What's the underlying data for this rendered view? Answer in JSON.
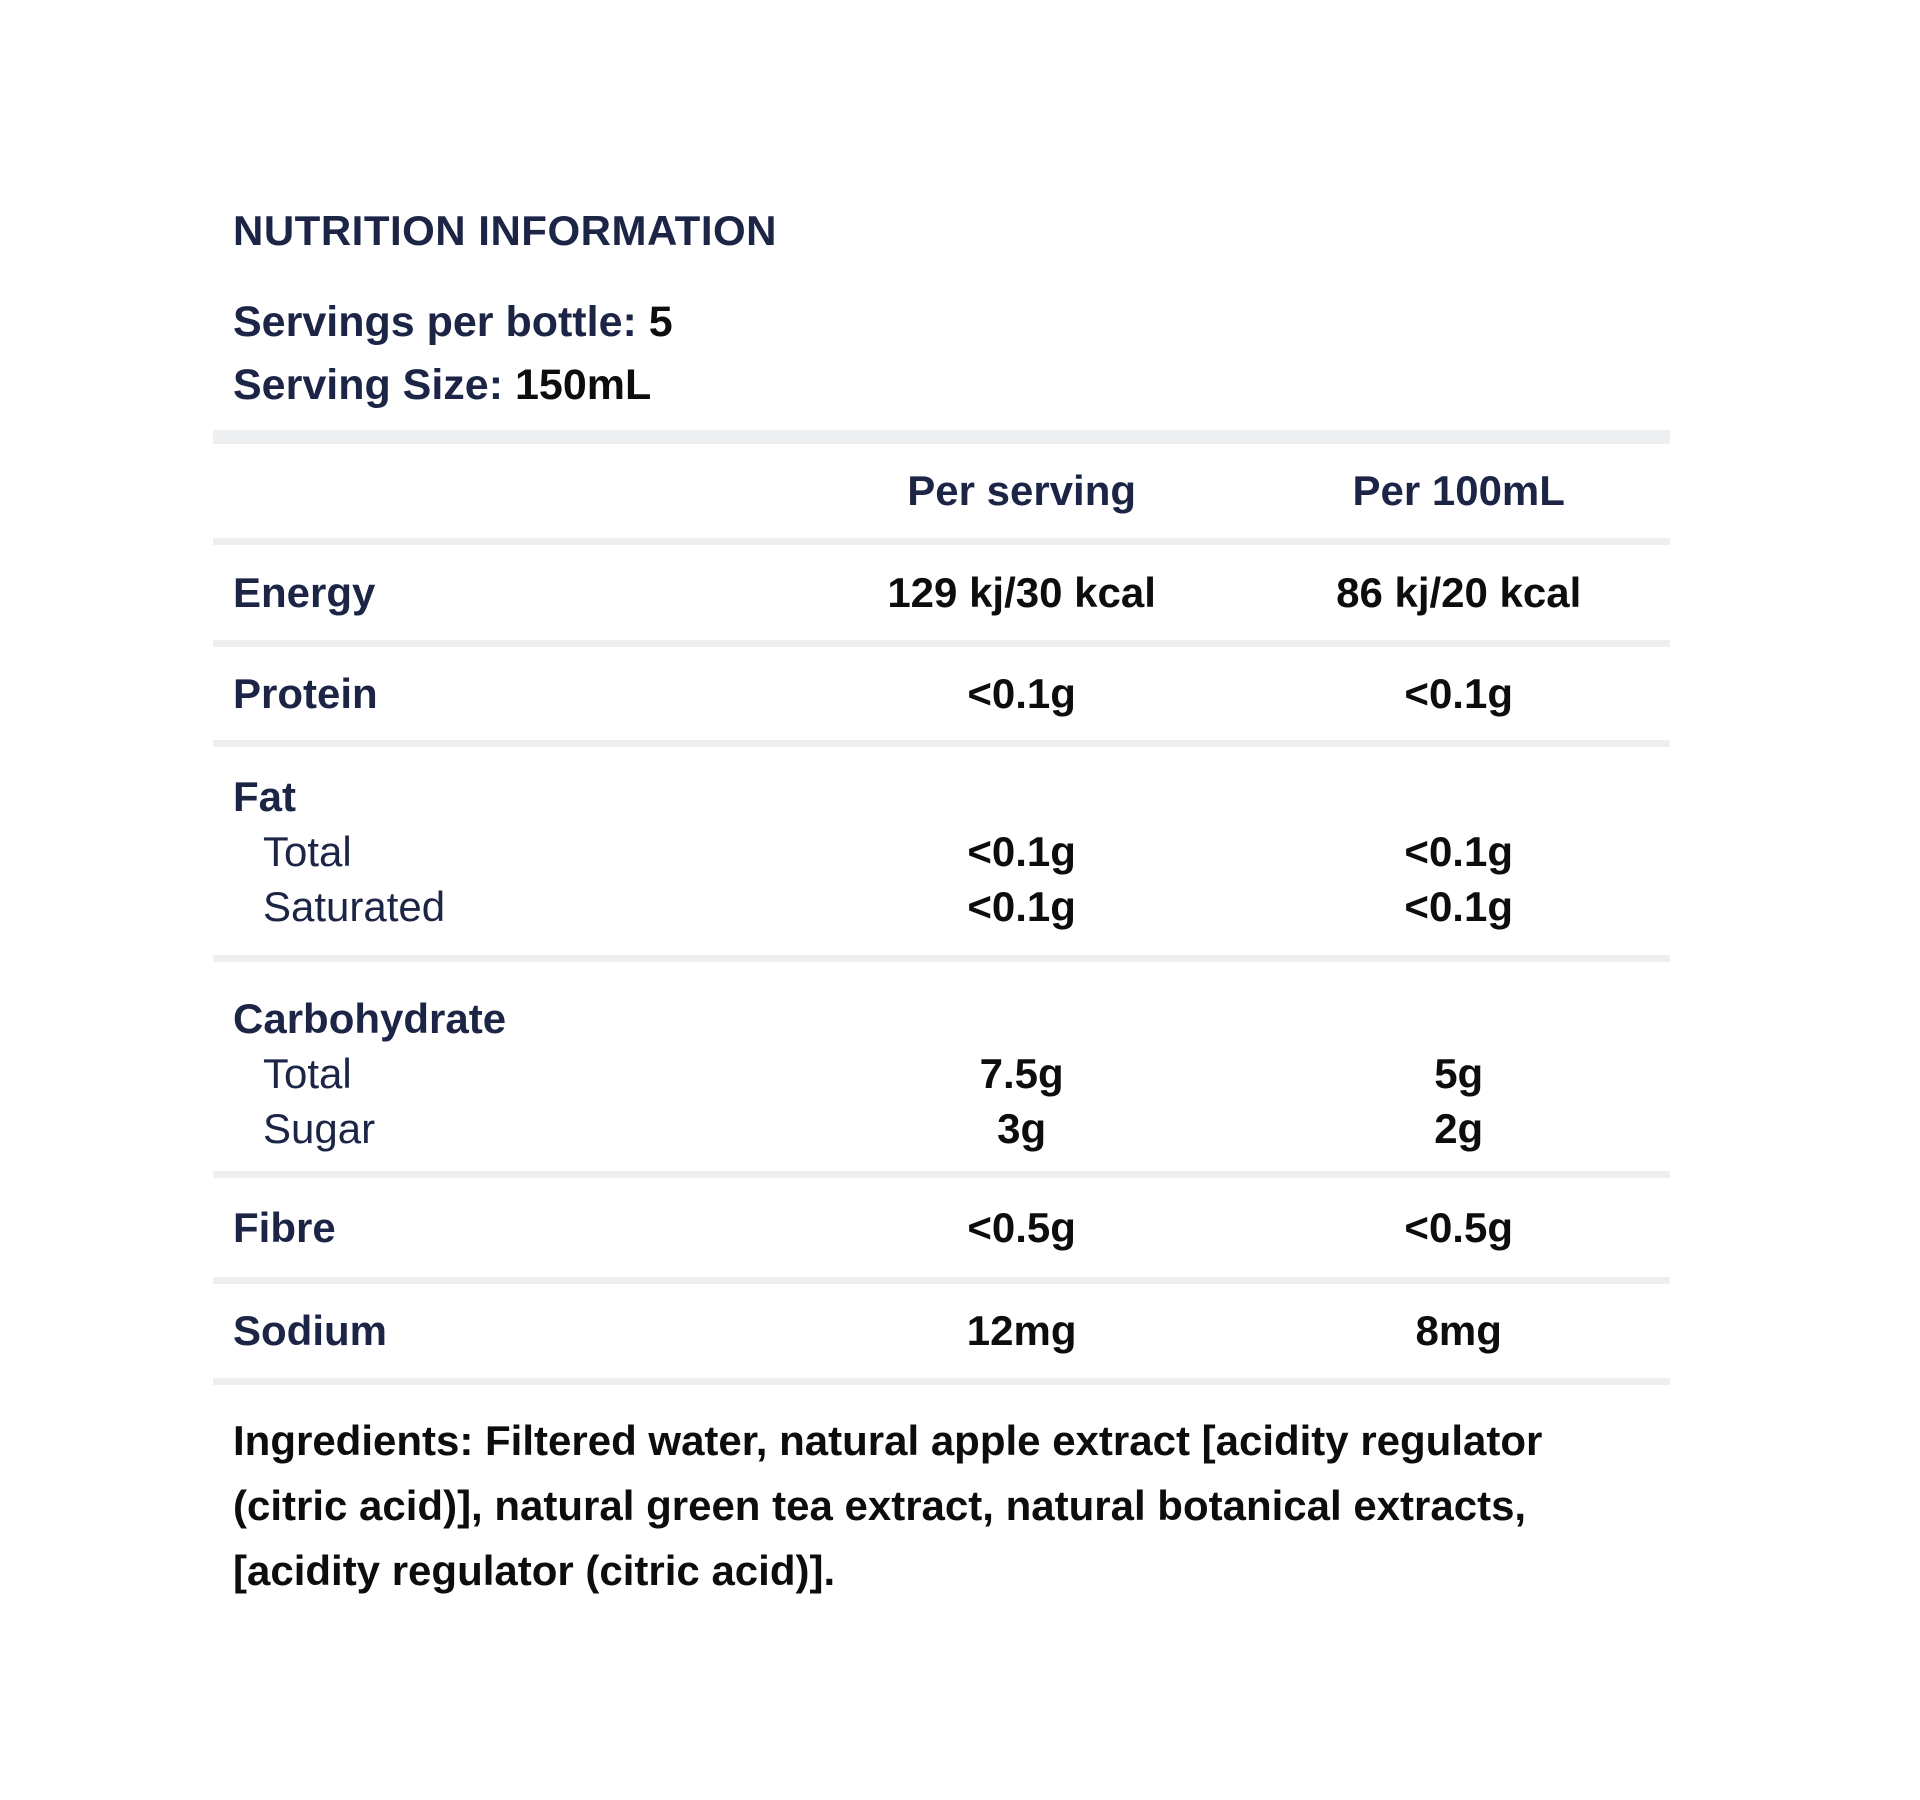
{
  "title": "NUTRITION INFORMATION",
  "servings": {
    "label": "Servings per bottle:",
    "value": "5"
  },
  "serving_size": {
    "label": "Serving Size:",
    "value": "150mL"
  },
  "table": {
    "columns": [
      "",
      "Per serving",
      "Per 100mL"
    ],
    "rows": [
      {
        "type": "simple",
        "label": "Energy",
        "per_serving": "129 kj/30 kcal",
        "per_100ml": "86 kj/20 kcal"
      },
      {
        "type": "simple",
        "label": "Protein",
        "per_serving": "<0.1g",
        "per_100ml": "<0.1g"
      },
      {
        "type": "group",
        "label": "Fat",
        "subrows": [
          {
            "label": "Total",
            "per_serving": "<0.1g",
            "per_100ml": "<0.1g"
          },
          {
            "label": "Saturated",
            "per_serving": "<0.1g",
            "per_100ml": "<0.1g"
          }
        ]
      },
      {
        "type": "group",
        "label": "Carbohydrate",
        "subrows": [
          {
            "label": "Total",
            "per_serving": "7.5g",
            "per_100ml": "5g"
          },
          {
            "label": "Sugar",
            "per_serving": "3g",
            "per_100ml": "2g"
          }
        ]
      },
      {
        "type": "simple",
        "label": "Fibre",
        "per_serving": "<0.5g",
        "per_100ml": "<0.5g"
      },
      {
        "type": "simple",
        "label": "Sodium",
        "per_serving": "12mg",
        "per_100ml": "8mg"
      }
    ]
  },
  "ingredients": {
    "label": "Ingredients:",
    "text": " Filtered water, natural apple extract [acidity regulator (citric acid)], natural green tea extract, natural botanical extracts, [acidity regulator (citric acid)]."
  },
  "colors": {
    "navy_text": "#1d2547",
    "black_text": "#0d0d0d",
    "divider_gray": "#edeff1",
    "background": "#ffffff"
  }
}
